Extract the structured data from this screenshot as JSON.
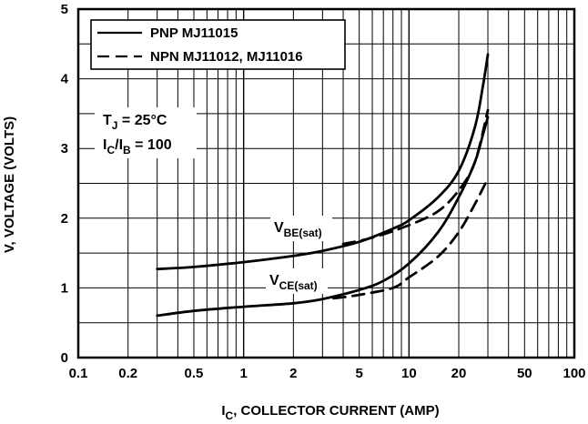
{
  "chart_data": {
    "type": "line",
    "x_scale": "log",
    "xlim": [
      0.1,
      100
    ],
    "ylim": [
      0,
      5
    ],
    "grid": true,
    "x_ticks": [
      "0.1",
      "0.2",
      "0.5",
      "1",
      "2",
      "5",
      "10",
      "20",
      "50",
      "100"
    ],
    "y_ticks": [
      "0",
      "1",
      "2",
      "3",
      "4",
      "5"
    ],
    "xlabel": {
      "main": "I",
      "sub": "C",
      "rest": ", COLLECTOR CURRENT (AMP)"
    },
    "ylabel": "V, VOLTAGE (VOLTS)",
    "legend_position": "top-left",
    "legend": [
      {
        "label": "PNP MJ11015",
        "style": "solid"
      },
      {
        "label": "NPN MJ11012, MJ11016",
        "style": "dashed"
      }
    ],
    "conditions": {
      "tj": {
        "main": "T",
        "sub": "J",
        "rest": " = 25°C"
      },
      "ratio": {
        "m1": "I",
        "s1": "C",
        "m2": "/I",
        "s2": "B",
        "rest": " = 100"
      }
    },
    "curve_labels": {
      "vbe": {
        "main": "V",
        "sub": "BE(sat)"
      },
      "vce": {
        "main": "V",
        "sub": "CE(sat)"
      }
    },
    "series": [
      {
        "group": "V_BE(sat)",
        "style": "solid",
        "points": [
          [
            0.3,
            1.27
          ],
          [
            0.5,
            1.3
          ],
          [
            1,
            1.37
          ],
          [
            2,
            1.46
          ],
          [
            3,
            1.53
          ],
          [
            5,
            1.66
          ],
          [
            8,
            1.85
          ],
          [
            10,
            1.97
          ],
          [
            15,
            2.3
          ],
          [
            20,
            2.68
          ],
          [
            25,
            3.3
          ],
          [
            28,
            3.9
          ],
          [
            30,
            4.35
          ]
        ]
      },
      {
        "group": "V_BE(sat)",
        "style": "dashed",
        "points": [
          [
            4,
            1.63
          ],
          [
            6,
            1.72
          ],
          [
            10,
            1.9
          ],
          [
            15,
            2.1
          ],
          [
            20,
            2.4
          ],
          [
            25,
            2.8
          ],
          [
            30,
            3.55
          ]
        ]
      },
      {
        "group": "V_CE(sat)",
        "style": "solid",
        "points": [
          [
            0.3,
            0.6
          ],
          [
            0.5,
            0.67
          ],
          [
            1,
            0.73
          ],
          [
            2,
            0.78
          ],
          [
            3,
            0.84
          ],
          [
            5,
            0.97
          ],
          [
            7,
            1.1
          ],
          [
            10,
            1.35
          ],
          [
            15,
            1.8
          ],
          [
            20,
            2.3
          ],
          [
            25,
            2.8
          ],
          [
            28,
            3.2
          ],
          [
            30,
            3.45
          ]
        ]
      },
      {
        "group": "V_CE(sat)",
        "style": "dashed",
        "points": [
          [
            3.5,
            0.85
          ],
          [
            5,
            0.9
          ],
          [
            8,
            1.0
          ],
          [
            10,
            1.15
          ],
          [
            15,
            1.45
          ],
          [
            20,
            1.8
          ],
          [
            25,
            2.2
          ],
          [
            30,
            2.57
          ]
        ]
      }
    ]
  }
}
